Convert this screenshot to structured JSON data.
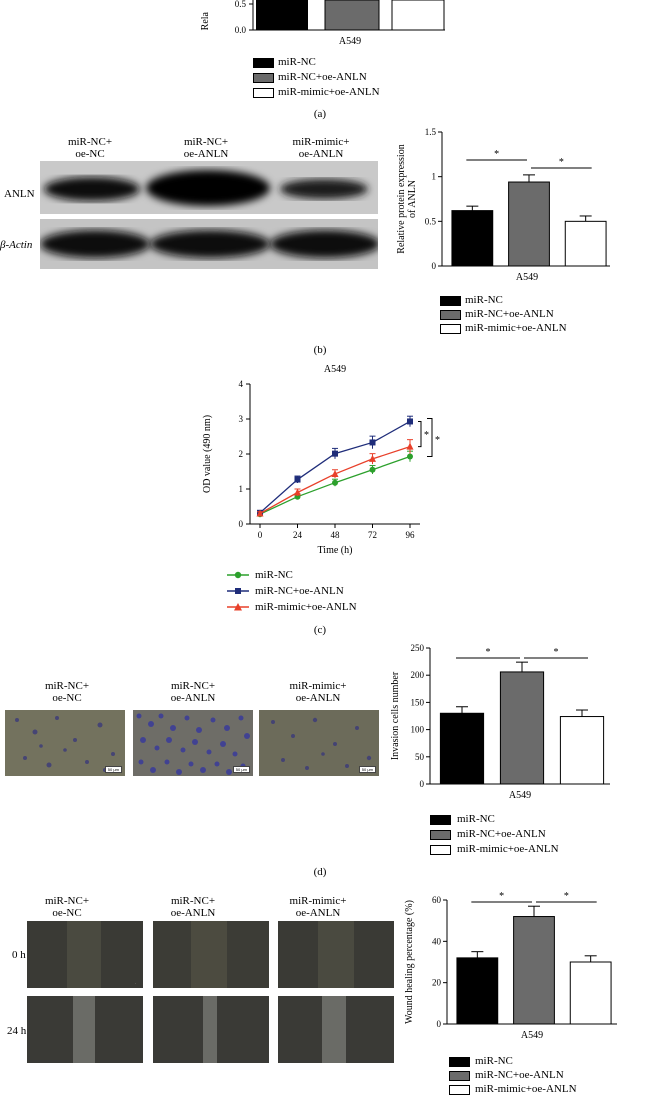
{
  "panel_a": {
    "ylabel_fragment": "Rela",
    "yticks": [
      "0.5",
      "0.0"
    ],
    "xlabel": "A549",
    "legend": [
      "miR-NC",
      "miR-NC+oe-ANLN",
      "miR-mimic+oe-ANLN"
    ],
    "label": "(a)"
  },
  "panel_b": {
    "blot_columns": [
      "miR-NC+\noe-NC",
      "miR-NC+\noe-ANLN",
      "miR-mimic+\noe-ANLN"
    ],
    "row_labels": [
      "ANLN",
      "β-Actin"
    ],
    "label": "(b)"
  },
  "panel_c": {
    "label": "(c)"
  },
  "panel_d": {
    "image_columns": [
      "miR-NC+\noe-NC",
      "miR-NC+\noe-ANLN",
      "miR-mimic+\noe-ANLN"
    ],
    "scale_bar": "50 μm",
    "label": "(d)"
  },
  "panel_e": {
    "image_columns": [
      "miR-NC+\noe-NC",
      "miR-NC+\noe-ANLN",
      "miR-mimic+\noe-ANLN"
    ],
    "row_labels": [
      "0 h",
      "24 h"
    ],
    "label": "(e)"
  },
  "colors": {
    "black": "#000000",
    "gray": "#6b6b6b",
    "white": "#ffffff",
    "line_green": "#2ca02c",
    "line_navy": "#1f2d7a",
    "line_red": "#e8402a"
  },
  "chart_data": [
    {
      "id": "b",
      "type": "bar",
      "title": "",
      "xlabel": "A549",
      "ylabel": "Relative protein expression\nof ANLN",
      "ylim": [
        0,
        1.5
      ],
      "yticks": [
        0.0,
        0.5,
        1.0,
        1.5
      ],
      "categories": [
        "miR-NC",
        "miR-NC+oe-ANLN",
        "miR-mimic+oe-ANLN"
      ],
      "values": [
        0.62,
        0.94,
        0.5
      ],
      "errors": [
        0.05,
        0.08,
        0.06
      ],
      "significance": [
        "*",
        "*"
      ],
      "legend": [
        "miR-NC",
        "miR-NC+oe-ANLN",
        "miR-mimic+oe-ANLN"
      ]
    },
    {
      "id": "c",
      "type": "line",
      "title": "A549",
      "xlabel": "Time (h)",
      "ylabel": "OD value (490 nm)",
      "x": [
        0,
        24,
        48,
        72,
        96
      ],
      "ylim": [
        0,
        4
      ],
      "yticks": [
        0,
        1,
        2,
        3,
        4
      ],
      "series": [
        {
          "name": "miR-NC",
          "values": [
            0.28,
            0.78,
            1.18,
            1.55,
            1.93
          ],
          "errors": [
            0.05,
            0.08,
            0.1,
            0.12,
            0.15
          ]
        },
        {
          "name": "miR-NC+oe-ANLN",
          "values": [
            0.32,
            1.27,
            2.01,
            2.33,
            2.93
          ],
          "errors": [
            0.05,
            0.1,
            0.15,
            0.18,
            0.15
          ]
        },
        {
          "name": "miR-mimic+oe-ANLN",
          "values": [
            0.3,
            0.9,
            1.43,
            1.86,
            2.21
          ],
          "errors": [
            0.05,
            0.1,
            0.12,
            0.15,
            0.2
          ]
        }
      ],
      "significance": [
        "*",
        "*"
      ],
      "legend": [
        "miR-NC",
        "miR-NC+oe-ANLN",
        "miR-mimic+oe-ANLN"
      ]
    },
    {
      "id": "d",
      "type": "bar",
      "title": "",
      "xlabel": "A549",
      "ylabel": "Invasion cells number",
      "ylim": [
        0,
        250
      ],
      "yticks": [
        0,
        50,
        100,
        150,
        200,
        250
      ],
      "categories": [
        "miR-NC",
        "miR-NC+oe-ANLN",
        "miR-mimic+oe-ANLN"
      ],
      "values": [
        130,
        206,
        124
      ],
      "errors": [
        12,
        18,
        12
      ],
      "significance": [
        "*",
        "*"
      ],
      "legend": [
        "miR-NC",
        "miR-NC+oe-ANLN",
        "miR-mimic+oe-ANLN"
      ]
    },
    {
      "id": "e",
      "type": "bar",
      "title": "",
      "xlabel": "A549",
      "ylabel": "Wound healing percentage (%)",
      "ylim": [
        0,
        60
      ],
      "yticks": [
        0,
        20,
        40,
        60
      ],
      "categories": [
        "miR-NC",
        "miR-NC+oe-ANLN",
        "miR-mimic+oe-ANLN"
      ],
      "values": [
        32,
        52,
        30
      ],
      "errors": [
        3,
        5,
        3
      ],
      "significance": [
        "*",
        "*"
      ],
      "legend": [
        "miR-NC",
        "miR-NC+oe-ANLN",
        "miR-mimic+oe-ANLN"
      ]
    }
  ]
}
